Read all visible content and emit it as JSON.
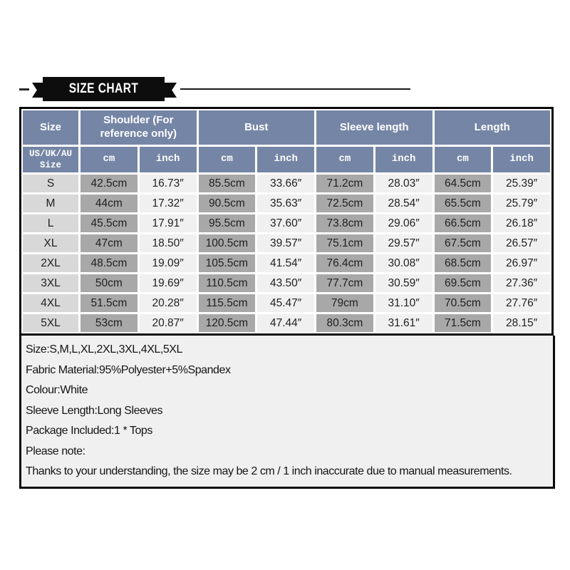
{
  "banner": {
    "title": "SIZE CHART"
  },
  "table": {
    "col_groups": [
      {
        "label": "Size"
      },
      {
        "label": "Shoulder (For reference only)"
      },
      {
        "label": "Bust"
      },
      {
        "label": "Sleeve length"
      },
      {
        "label": "Length"
      }
    ],
    "sub": {
      "size": "US/UK/AU Size",
      "cm": "cm",
      "inch": "inch"
    },
    "rows": [
      {
        "size": "S",
        "shoulder_cm": "42.5cm",
        "shoulder_in": "16.73″",
        "bust_cm": "85.5cm",
        "bust_in": "33.66″",
        "sleeve_cm": "71.2cm",
        "sleeve_in": "28.03″",
        "length_cm": "64.5cm",
        "length_in": "25.39″"
      },
      {
        "size": "M",
        "shoulder_cm": "44cm",
        "shoulder_in": "17.32″",
        "bust_cm": "90.5cm",
        "bust_in": "35.63″",
        "sleeve_cm": "72.5cm",
        "sleeve_in": "28.54″",
        "length_cm": "65.5cm",
        "length_in": "25.79″"
      },
      {
        "size": "L",
        "shoulder_cm": "45.5cm",
        "shoulder_in": "17.91″",
        "bust_cm": "95.5cm",
        "bust_in": "37.60″",
        "sleeve_cm": "73.8cm",
        "sleeve_in": "29.06″",
        "length_cm": "66.5cm",
        "length_in": "26.18″"
      },
      {
        "size": "XL",
        "shoulder_cm": "47cm",
        "shoulder_in": "18.50″",
        "bust_cm": "100.5cm",
        "bust_in": "39.57″",
        "sleeve_cm": "75.1cm",
        "sleeve_in": "29.57″",
        "length_cm": "67.5cm",
        "length_in": "26.57″"
      },
      {
        "size": "2XL",
        "shoulder_cm": "48.5cm",
        "shoulder_in": "19.09″",
        "bust_cm": "105.5cm",
        "bust_in": "41.54″",
        "sleeve_cm": "76.4cm",
        "sleeve_in": "30.08″",
        "length_cm": "68.5cm",
        "length_in": "26.97″"
      },
      {
        "size": "3XL",
        "shoulder_cm": "50cm",
        "shoulder_in": "19.69″",
        "bust_cm": "110.5cm",
        "bust_in": "43.50″",
        "sleeve_cm": "77.7cm",
        "sleeve_in": "30.59″",
        "length_cm": "69.5cm",
        "length_in": "27.36″"
      },
      {
        "size": "4XL",
        "shoulder_cm": "51.5cm",
        "shoulder_in": "20.28″",
        "bust_cm": "115.5cm",
        "bust_in": "45.47″",
        "sleeve_cm": "79cm",
        "sleeve_in": "31.10″",
        "length_cm": "70.5cm",
        "length_in": "27.76″"
      },
      {
        "size": "5XL",
        "shoulder_cm": "53cm",
        "shoulder_in": "20.87″",
        "bust_cm": "120.5cm",
        "bust_in": "47.44″",
        "sleeve_cm": "80.3cm",
        "sleeve_in": "31.61″",
        "length_cm": "71.5cm",
        "length_in": "28.15″"
      }
    ]
  },
  "notes": {
    "lines": [
      "Size:S,M,L,XL,2XL,3XL,4XL,5XL",
      "Fabric Material:95%Polyester+5%Spandex",
      "Colour:White",
      "Sleeve Length:Long Sleeves",
      "Package Included:1 * Tops",
      "Please note:",
      "Thanks to your understanding, the size may be 2 cm / 1 inch inaccurate due to manual measurements."
    ]
  },
  "colors": {
    "header_bg": "#7585a5",
    "cm_cell_bg": "#a8a8a8",
    "size_cell_bg": "#d8d8d8",
    "inch_cell_bg": "#f0f0f0",
    "ribbon_bg": "#0d0d0d",
    "notes_bg": "#f0f0f0",
    "border": "#0a0a0a"
  }
}
